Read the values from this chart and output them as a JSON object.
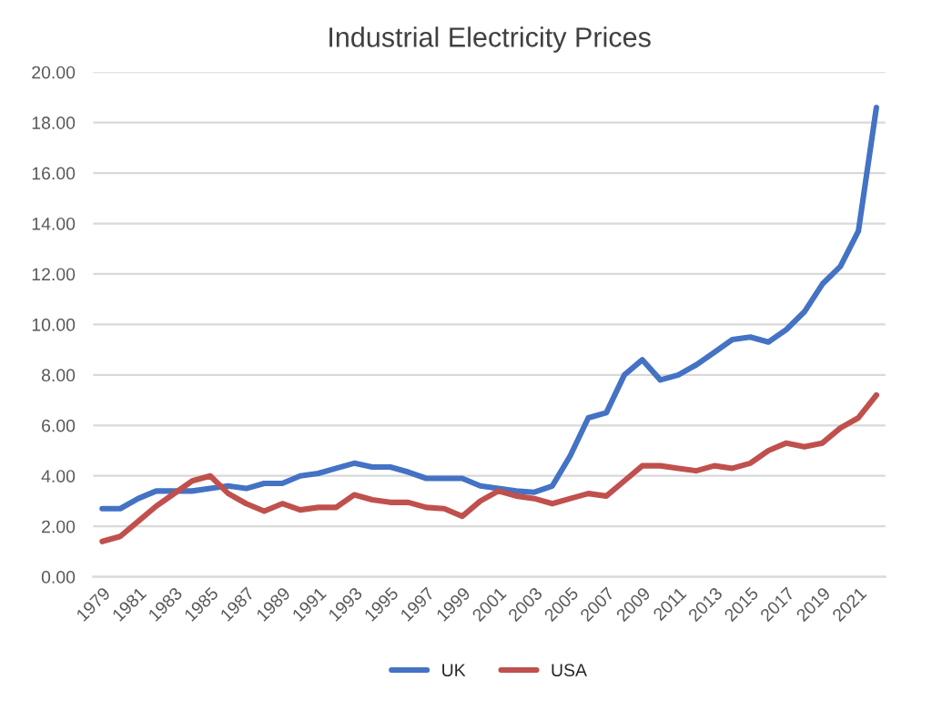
{
  "chart_data": {
    "type": "line",
    "title": "Industrial Electricity Prices",
    "categories": [
      "1979",
      null,
      "1981",
      null,
      "1983",
      null,
      "1985",
      null,
      "1987",
      null,
      "1989",
      null,
      "1991",
      null,
      "1993",
      null,
      "1995",
      null,
      "1997",
      null,
      "1999",
      null,
      "2001",
      null,
      "2003",
      null,
      "2005",
      null,
      "2007",
      null,
      "2009",
      null,
      "2011",
      null,
      "2013",
      null,
      "2015",
      null,
      "2017",
      null,
      "2019",
      null,
      "2021",
      null
    ],
    "series": [
      {
        "name": "UK",
        "color": "#4472c4",
        "values": [
          2.7,
          2.7,
          3.1,
          3.4,
          3.4,
          3.4,
          3.5,
          3.6,
          3.5,
          3.7,
          3.7,
          4.0,
          4.1,
          4.3,
          4.5,
          4.35,
          4.35,
          4.15,
          3.9,
          3.9,
          3.9,
          3.6,
          3.5,
          3.4,
          3.35,
          3.6,
          4.8,
          6.3,
          6.5,
          8.0,
          8.6,
          7.8,
          8.0,
          8.4,
          8.9,
          9.4,
          9.5,
          9.3,
          9.8,
          10.5,
          11.6,
          12.3,
          13.7,
          18.6
        ]
      },
      {
        "name": "USA",
        "color": "#c0504d",
        "values": [
          1.4,
          1.6,
          2.2,
          2.8,
          3.3,
          3.8,
          4.0,
          3.3,
          2.9,
          2.6,
          2.9,
          2.65,
          2.75,
          2.75,
          3.25,
          3.05,
          2.95,
          2.95,
          2.75,
          2.7,
          2.4,
          3.0,
          3.4,
          3.2,
          3.1,
          2.9,
          3.1,
          3.3,
          3.2,
          3.8,
          4.4,
          4.4,
          4.3,
          4.2,
          4.4,
          4.3,
          4.5,
          5.0,
          5.3,
          5.15,
          5.3,
          5.9,
          6.3,
          7.2
        ]
      }
    ],
    "ylim": [
      0,
      20
    ],
    "yticks": [
      {
        "value": 0,
        "label": "0.00"
      },
      {
        "value": 2,
        "label": "2.00"
      },
      {
        "value": 4,
        "label": "4.00"
      },
      {
        "value": 6,
        "label": "6.00"
      },
      {
        "value": 8,
        "label": "8.00"
      },
      {
        "value": 10,
        "label": "10.00"
      },
      {
        "value": 12,
        "label": "12.00"
      },
      {
        "value": 14,
        "label": "14.00"
      },
      {
        "value": 16,
        "label": "16.00"
      },
      {
        "value": 18,
        "label": "18.00"
      },
      {
        "value": 20,
        "label": "20.00"
      }
    ],
    "grid": "y",
    "legend": "bottom"
  }
}
